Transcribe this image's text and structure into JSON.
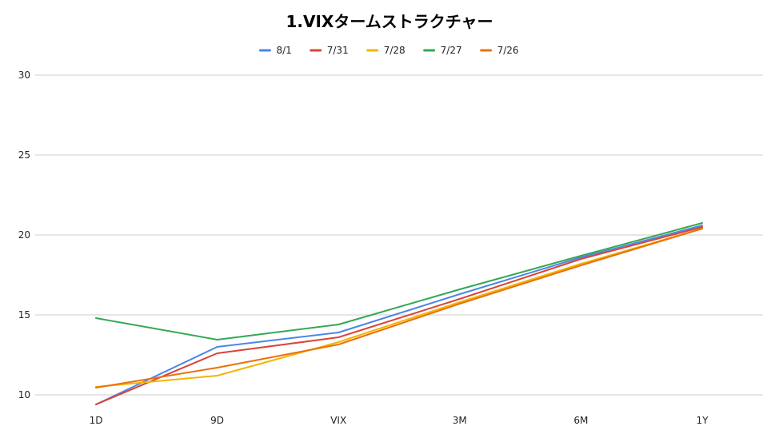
{
  "chart_data": {
    "type": "line",
    "title": "1.VIXタームストラクチャー",
    "xlabel": "",
    "ylabel": "",
    "categories": [
      "1D",
      "9D",
      "VIX",
      "3M",
      "6M",
      "1Y"
    ],
    "ylim": [
      10,
      30
    ],
    "yticks": [
      10,
      15,
      20,
      25,
      30
    ],
    "grid": true,
    "legend_position": "top",
    "series": [
      {
        "name": "8/1",
        "color": "#4a86e8",
        "values": [
          9.4,
          13.0,
          13.9,
          16.3,
          18.6,
          20.6
        ]
      },
      {
        "name": "7/31",
        "color": "#db4437",
        "values": [
          9.4,
          12.6,
          13.6,
          16.0,
          18.5,
          20.5
        ]
      },
      {
        "name": "7/28",
        "color": "#f4b400",
        "values": [
          10.5,
          11.2,
          13.3,
          15.8,
          18.2,
          20.4
        ]
      },
      {
        "name": "7/27",
        "color": "#34a853",
        "values": [
          14.8,
          13.45,
          14.4,
          16.6,
          18.7,
          20.75
        ]
      },
      {
        "name": "7/26",
        "color": "#e8710a",
        "values": [
          10.45,
          11.7,
          13.15,
          15.7,
          18.1,
          20.4
        ]
      }
    ]
  }
}
